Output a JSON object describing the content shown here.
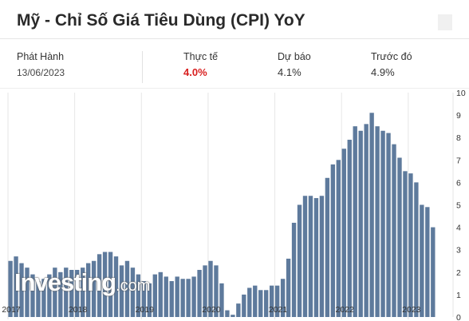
{
  "header": {
    "title": "Mỹ - Chỉ Số Giá Tiêu Dùng (CPI) YoY"
  },
  "stats": {
    "release_label": "Phát Hành",
    "release_date": "13/06/2023",
    "actual_label": "Thực tế",
    "actual_value": "4.0%",
    "forecast_label": "Dự báo",
    "forecast_value": "4.1%",
    "previous_label": "Trước đó",
    "previous_value": "4.9%"
  },
  "watermark": {
    "brand": "Investing",
    "suffix": ".com"
  },
  "colors": {
    "bar": "#5e7a9c",
    "bar_stroke": "#ffffff",
    "grid": "#e6e6e6",
    "actual": "#d81f1f"
  },
  "chart_data": {
    "type": "bar",
    "x_start": "2017-01",
    "x_labels": [
      "2017",
      "2018",
      "2019",
      "2020",
      "2021",
      "2022",
      "2023"
    ],
    "y_ticks": [
      0,
      1,
      2,
      3,
      4,
      5,
      6,
      7,
      8,
      9,
      10
    ],
    "ylim": [
      0,
      10
    ],
    "y_axis_side": "right",
    "grid": "vertical lines at year starts",
    "series": [
      {
        "values": [
          2.5,
          2.7,
          2.4,
          2.2,
          1.9,
          1.6,
          1.7,
          1.9,
          2.2,
          2.0,
          2.2,
          2.1,
          2.1,
          2.2,
          2.4,
          2.5,
          2.8,
          2.9,
          2.9,
          2.7,
          2.3,
          2.5,
          2.2,
          1.9,
          1.6,
          1.5,
          1.9,
          2.0,
          1.8,
          1.6,
          1.8,
          1.7,
          1.7,
          1.8,
          2.1,
          2.3,
          2.5,
          2.3,
          1.5,
          0.3,
          0.1,
          0.6,
          1.0,
          1.3,
          1.4,
          1.2,
          1.2,
          1.4,
          1.4,
          1.7,
          2.6,
          4.2,
          5.0,
          5.4,
          5.4,
          5.3,
          5.4,
          6.2,
          6.8,
          7.0,
          7.5,
          7.9,
          8.5,
          8.3,
          8.6,
          9.1,
          8.5,
          8.3,
          8.2,
          7.7,
          7.1,
          6.5,
          6.4,
          6.0,
          5.0,
          4.9,
          4.0
        ]
      }
    ]
  }
}
